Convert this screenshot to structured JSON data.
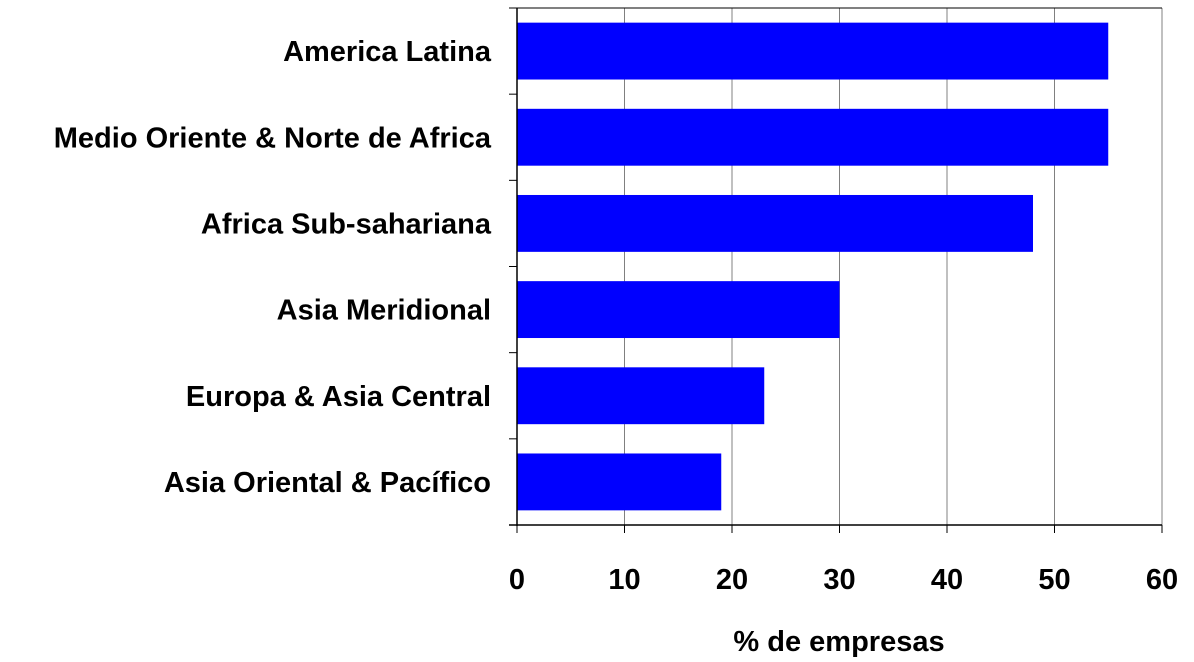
{
  "chart_data": {
    "type": "bar",
    "orientation": "horizontal",
    "categories": [
      "America Latina",
      "Medio Oriente & Norte de Africa",
      "Africa Sub-sahariana",
      "Asia Meridional",
      "Europa & Asia Central",
      "Asia Oriental & Pacífico"
    ],
    "values": [
      55,
      55,
      48,
      30,
      23,
      19
    ],
    "xlabel": "% de empresas",
    "ylabel": "",
    "title": "",
    "xlim": [
      0,
      60
    ],
    "xticks": [
      "0",
      "10",
      "20",
      "30",
      "40",
      "50",
      "60"
    ],
    "grid": "vertical",
    "legend": "none",
    "colors": {
      "bar": "#0000FF",
      "grid": "#808080",
      "axis": "#000000",
      "background": "#FFFFFF"
    }
  }
}
